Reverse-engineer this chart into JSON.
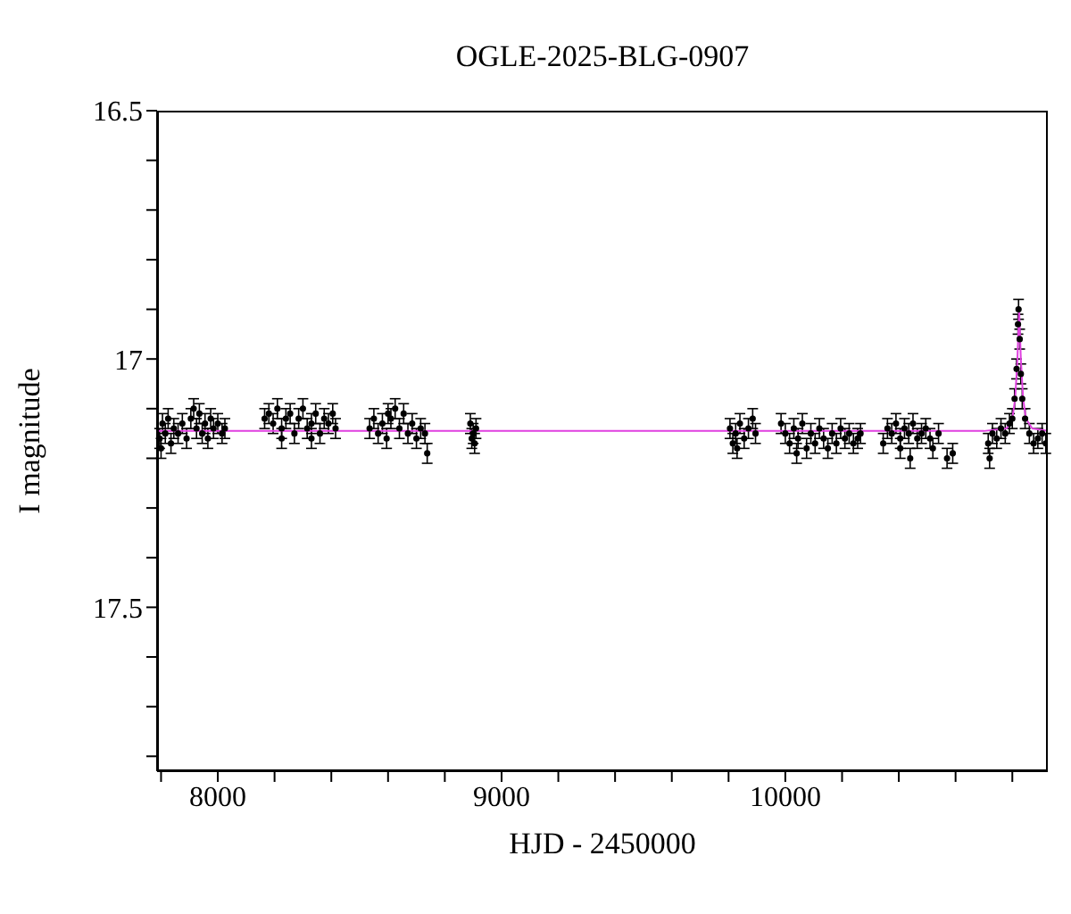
{
  "chart_data": {
    "type": "scatter",
    "title": "OGLE-2025-BLG-0907",
    "xlabel": "HJD - 2450000",
    "ylabel": "I magnitude",
    "xlim": [
      7786,
      10925
    ],
    "ylim": [
      17.83,
      16.5
    ],
    "xticks": [
      {
        "value": 7800,
        "label": null
      },
      8000,
      {
        "value": 8200,
        "label": null
      },
      {
        "value": 8400,
        "label": null
      },
      {
        "value": 8600,
        "label": null
      },
      {
        "value": 8800,
        "label": null
      },
      9000,
      {
        "value": 9200,
        "label": null
      },
      {
        "value": 9400,
        "label": null
      },
      {
        "value": 9600,
        "label": null
      },
      {
        "value": 9800,
        "label": null
      },
      10000,
      {
        "value": 10200,
        "label": null
      },
      {
        "value": 10400,
        "label": null
      },
      {
        "value": 10600,
        "label": null
      },
      {
        "value": 10800,
        "label": null
      }
    ],
    "yticks": [
      16.5,
      {
        "value": 16.6,
        "label": null
      },
      {
        "value": 16.7,
        "label": null
      },
      {
        "value": 16.8,
        "label": null
      },
      {
        "value": 16.9,
        "label": null
      },
      17,
      {
        "value": 17.1,
        "label": null
      },
      {
        "value": 17.2,
        "label": null
      },
      {
        "value": 17.3,
        "label": null
      },
      {
        "value": 17.4,
        "label": null
      },
      17.5,
      {
        "value": 17.6,
        "label": null
      },
      {
        "value": 17.7,
        "label": null
      },
      {
        "value": 17.8,
        "label": null
      }
    ],
    "marker": "circle",
    "series": [
      {
        "color": "#000000",
        "x": [
          7795,
          7805,
          7815,
          7825,
          7835,
          7845,
          7860,
          7875,
          7890,
          7905,
          7915,
          7925,
          7935,
          7945,
          7955,
          7965,
          7975,
          7985,
          8000,
          8015,
          8025,
          7800,
          8165,
          8180,
          8195,
          8210,
          8225,
          8240,
          8255,
          8270,
          8285,
          8300,
          8315,
          8330,
          8345,
          8360,
          8375,
          8390,
          8405,
          8415,
          8225,
          8330,
          8535,
          8550,
          8565,
          8580,
          8595,
          8610,
          8625,
          8640,
          8655,
          8670,
          8685,
          8700,
          8715,
          8730,
          8738,
          8600,
          8890,
          8895,
          8900,
          8905,
          8910,
          9805,
          9815,
          9825,
          9840,
          9855,
          9870,
          9885,
          9895,
          9830,
          9985,
          10000,
          10015,
          10030,
          10045,
          10060,
          10075,
          10090,
          10105,
          10120,
          10135,
          10150,
          10165,
          10180,
          10195,
          10210,
          10225,
          10240,
          10255,
          10265,
          10040,
          10345,
          10360,
          10375,
          10390,
          10405,
          10420,
          10435,
          10450,
          10465,
          10480,
          10495,
          10510,
          10520,
          10540,
          10440,
          10570,
          10590,
          10405,
          10715,
          10730,
          10745,
          10760,
          10775,
          10790,
          10800,
          10808,
          10815,
          10820,
          10822,
          10826,
          10830,
          10835,
          10845,
          10860,
          10875,
          10890,
          10905,
          10918,
          10720
        ],
        "values": [
          17.16,
          17.13,
          17.15,
          17.12,
          17.17,
          17.14,
          17.15,
          17.13,
          17.16,
          17.12,
          17.1,
          17.14,
          17.11,
          17.15,
          17.13,
          17.16,
          17.12,
          17.14,
          17.13,
          17.15,
          17.14,
          17.18,
          17.12,
          17.11,
          17.13,
          17.1,
          17.14,
          17.12,
          17.11,
          17.15,
          17.12,
          17.1,
          17.14,
          17.13,
          17.11,
          17.15,
          17.12,
          17.13,
          17.11,
          17.14,
          17.16,
          17.16,
          17.14,
          17.12,
          17.15,
          17.13,
          17.16,
          17.12,
          17.1,
          17.14,
          17.11,
          17.15,
          17.13,
          17.16,
          17.14,
          17.15,
          17.19,
          17.11,
          17.13,
          17.16,
          17.15,
          17.17,
          17.14,
          17.14,
          17.17,
          17.15,
          17.13,
          17.16,
          17.14,
          17.12,
          17.15,
          17.18,
          17.13,
          17.15,
          17.17,
          17.14,
          17.16,
          17.13,
          17.18,
          17.15,
          17.17,
          17.14,
          17.16,
          17.18,
          17.15,
          17.17,
          17.14,
          17.16,
          17.15,
          17.17,
          17.16,
          17.15,
          17.19,
          17.17,
          17.14,
          17.15,
          17.13,
          17.16,
          17.14,
          17.15,
          17.13,
          17.16,
          17.15,
          17.14,
          17.16,
          17.18,
          17.15,
          17.2,
          17.2,
          17.19,
          17.18,
          17.17,
          17.15,
          17.16,
          17.14,
          17.15,
          17.13,
          17.12,
          17.08,
          17.02,
          16.93,
          16.9,
          16.96,
          17.03,
          17.08,
          17.12,
          17.15,
          17.17,
          17.16,
          17.15,
          17.17,
          17.2
        ],
        "errors": [
          0.02,
          0.02,
          0.02,
          0.02,
          0.02,
          0.02,
          0.02,
          0.02,
          0.02,
          0.02,
          0.02,
          0.02,
          0.02,
          0.02,
          0.02,
          0.02,
          0.02,
          0.02,
          0.02,
          0.02,
          0.02,
          0.02,
          0.02,
          0.02,
          0.02,
          0.02,
          0.02,
          0.02,
          0.02,
          0.02,
          0.02,
          0.02,
          0.02,
          0.02,
          0.02,
          0.02,
          0.02,
          0.02,
          0.02,
          0.02,
          0.02,
          0.02,
          0.02,
          0.02,
          0.02,
          0.02,
          0.02,
          0.02,
          0.02,
          0.02,
          0.02,
          0.02,
          0.02,
          0.02,
          0.02,
          0.02,
          0.02,
          0.02,
          0.02,
          0.02,
          0.02,
          0.02,
          0.02,
          0.02,
          0.02,
          0.02,
          0.02,
          0.02,
          0.02,
          0.02,
          0.02,
          0.02,
          0.02,
          0.02,
          0.02,
          0.02,
          0.02,
          0.02,
          0.02,
          0.02,
          0.02,
          0.02,
          0.02,
          0.02,
          0.02,
          0.02,
          0.02,
          0.02,
          0.02,
          0.02,
          0.02,
          0.02,
          0.02,
          0.02,
          0.02,
          0.02,
          0.02,
          0.02,
          0.02,
          0.02,
          0.02,
          0.02,
          0.02,
          0.02,
          0.02,
          0.02,
          0.02,
          0.02,
          0.02,
          0.02,
          0.02,
          0.02,
          0.02,
          0.02,
          0.02,
          0.02,
          0.02,
          0.02,
          0.02,
          0.02,
          0.02,
          0.02,
          0.02,
          0.02,
          0.02,
          0.02,
          0.02,
          0.02,
          0.02,
          0.02,
          0.02,
          0.02
        ]
      },
      {
        "type": "line",
        "marker": "none",
        "color": "#e040e0",
        "x": [
          7786,
          10700,
          10780,
          10800,
          10810,
          10818,
          10824,
          10830,
          10838,
          10848,
          10870,
          10925
        ],
        "values": [
          17.145,
          17.145,
          17.14,
          17.12,
          17.08,
          17.0,
          16.9,
          17.0,
          17.08,
          17.12,
          17.14,
          17.145
        ]
      }
    ]
  }
}
